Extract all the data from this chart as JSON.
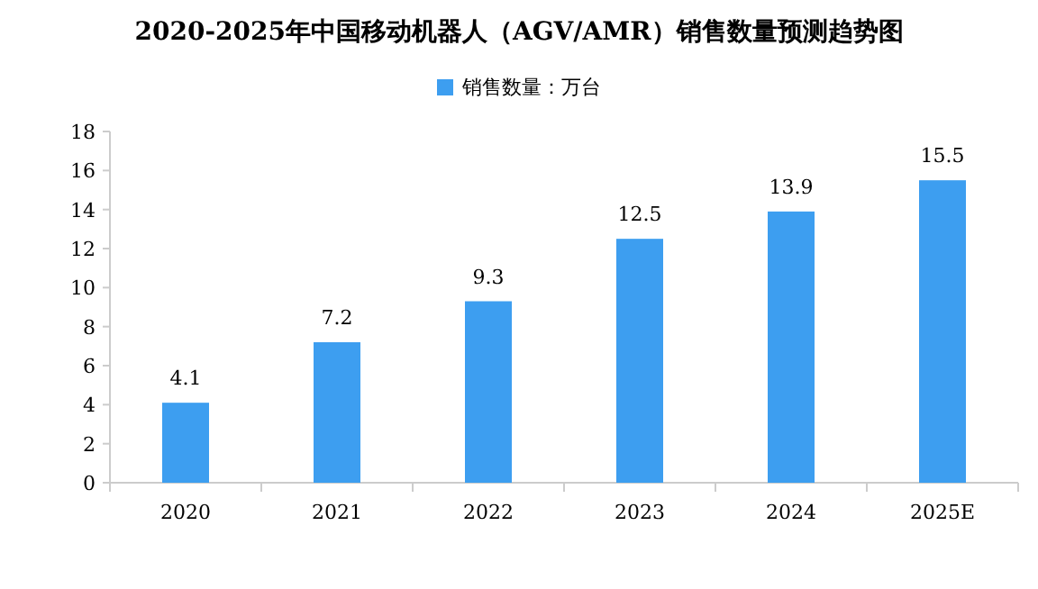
{
  "chart_data": {
    "type": "bar",
    "title": "2020-2025年中国移动机器人（AGV/AMR）销售数量预测趋势图",
    "categories": [
      "2020",
      "2021",
      "2022",
      "2023",
      "2024",
      "2025E"
    ],
    "series": [
      {
        "name": "销售数量：万台",
        "color": "#3d9ef0",
        "values": [
          4.1,
          7.2,
          9.3,
          12.5,
          13.9,
          15.5
        ]
      }
    ],
    "ylim": [
      0,
      18
    ],
    "yticks": [
      0,
      2,
      4,
      6,
      8,
      10,
      12,
      14,
      16,
      18
    ],
    "data_labels": true,
    "legend": "top",
    "grid": false
  }
}
